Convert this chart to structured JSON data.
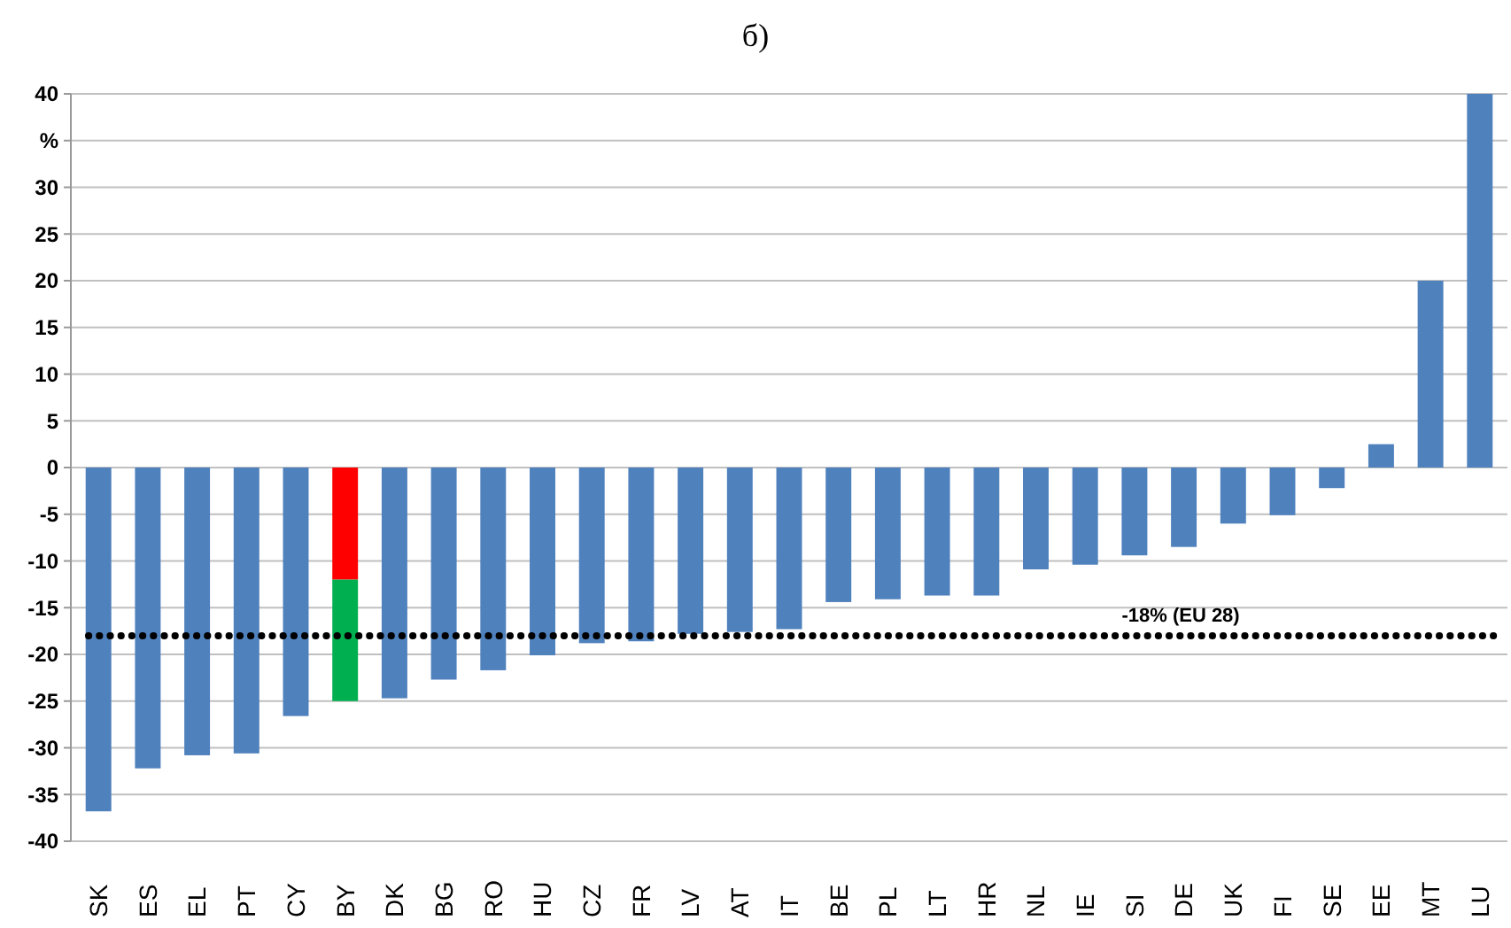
{
  "chart_data": {
    "type": "bar",
    "title": "б)",
    "stacked": true,
    "categories": [
      "SK",
      "ES",
      "EL",
      "PT",
      "CY",
      "BY",
      "DK",
      "BG",
      "RO",
      "HU",
      "CZ",
      "FR",
      "LV",
      "AT",
      "IT",
      "BE",
      "PL",
      "LT",
      "HR",
      "NL",
      "IE",
      "SI",
      "DE",
      "UK",
      "FI",
      "SE",
      "EE",
      "MT",
      "LU"
    ],
    "series": [
      {
        "color": "#4f81bd",
        "values": [
          -36.8,
          -32.2,
          -30.8,
          -30.6,
          -26.6,
          null,
          -24.7,
          -22.7,
          -21.7,
          -20.1,
          -18.8,
          -18.6,
          -17.8,
          -17.6,
          -17.3,
          -14.4,
          -14.1,
          -13.7,
          -13.7,
          -10.9,
          -10.4,
          -9.4,
          -8.5,
          -6.0,
          -5.1,
          -2.2,
          2.5,
          20,
          40
        ]
      },
      {
        "color": "#ff0000",
        "values": [
          null,
          null,
          null,
          null,
          null,
          -12,
          null,
          null,
          null,
          null,
          null,
          null,
          null,
          null,
          null,
          null,
          null,
          null,
          null,
          null,
          null,
          null,
          null,
          null,
          null,
          null,
          null,
          null,
          null
        ]
      },
      {
        "color": "#00b050",
        "values": [
          null,
          null,
          null,
          null,
          null,
          -13,
          null,
          null,
          null,
          null,
          null,
          null,
          null,
          null,
          null,
          null,
          null,
          null,
          null,
          null,
          null,
          null,
          null,
          null,
          null,
          null,
          null,
          null,
          null
        ]
      }
    ],
    "ylim": [
      -40,
      40
    ],
    "yticks": [
      -40,
      -35,
      -30,
      -25,
      -20,
      -15,
      -10,
      -5,
      0,
      5,
      10,
      15,
      20,
      25,
      30,
      {
        "value": 35,
        "label": "%"
      },
      40
    ],
    "grid": "y",
    "ref_lines": [
      {
        "axis": "y",
        "value": -18,
        "label": "-18% (EU 28)",
        "color": "#000000",
        "line_style": "dotted"
      }
    ]
  }
}
